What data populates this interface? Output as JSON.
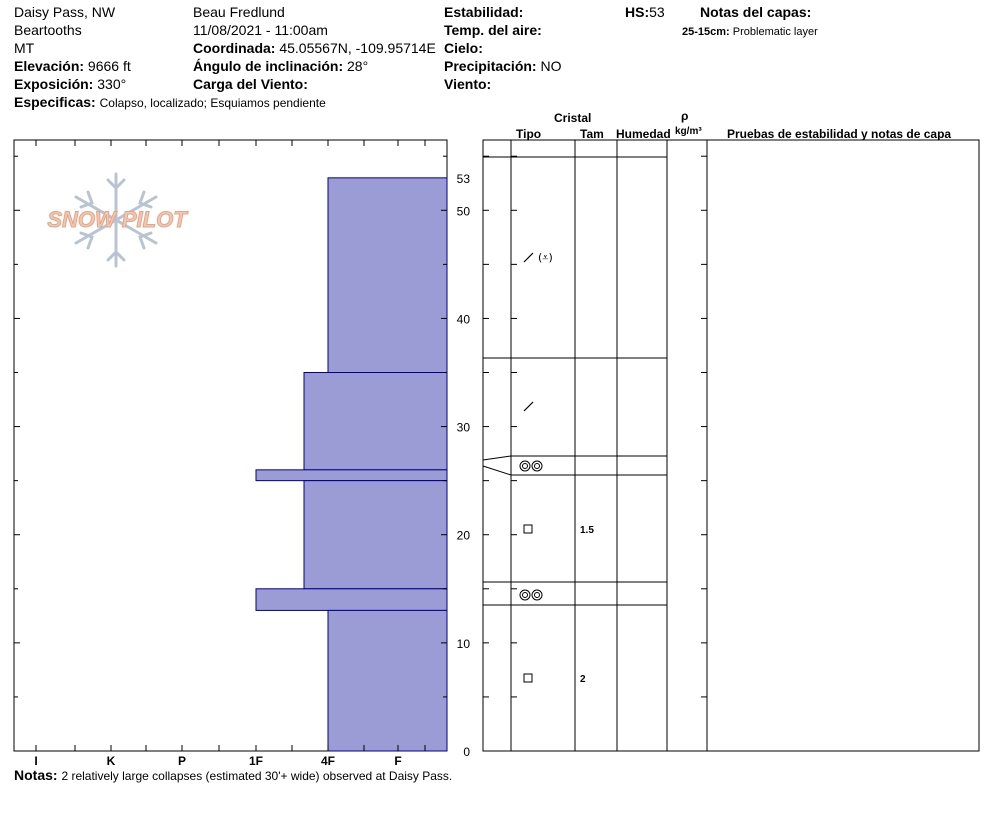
{
  "header": {
    "location": "Daisy Pass, NW",
    "range": "Beartooths",
    "state": "MT",
    "elevation_label": "Elevación:",
    "elevation_value": "9666 ft",
    "aspect_label": "Exposición:",
    "aspect_value": "330°",
    "specifics_label": "Especificas:",
    "specifics_value": "Colapso, localizado; Esquiamos pendiente",
    "observer": "Beau  Fredlund",
    "datetime": "11/08/2021 - 11:00am",
    "coord_label": "Coordinada:",
    "coord_value": "45.05567N, -109.95714E",
    "slope_label": "Ángulo de inclinación:",
    "slope_value": "28°",
    "wind_load_label": "Carga del Viento:",
    "stability_label": "Estabilidad:",
    "air_temp_label": "Temp. del aire:",
    "sky_label": "Cielo:",
    "precip_label": "Precipitación:",
    "precip_value": "NO",
    "wind_label": "Viento:",
    "hs_label": "HS:",
    "hs_value": "53",
    "layer_notes_label": "Notas del capas:",
    "layer_note_range": "25-15cm:",
    "layer_note_text": "Problematic layer"
  },
  "logo_text": "SNOW PILOT",
  "columns": {
    "crystal": "Cristal",
    "type": "Tipo",
    "size": "Tam",
    "moisture": "Humedad",
    "rho": "ρ",
    "density_unit": "kg/m³",
    "tests": "Pruebas de estabilidad y notas de capa"
  },
  "notes_label": "Notas:",
  "notes_value": "2 relatively large collapses (estimated 30'+ wide) observed at Daisy Pass.",
  "chart_data": {
    "type": "bar",
    "orientation": "horizontal",
    "yrange": [
      0,
      53
    ],
    "y_ticks": [
      0,
      10,
      20,
      30,
      40,
      50
    ],
    "top_label": "53",
    "hardness_scale": [
      "I",
      "K",
      "P",
      "1F",
      "4F",
      "F"
    ],
    "layers": [
      {
        "bottom": 35,
        "top": 53,
        "hardness": "4F",
        "grain": "decomposing-and-surface-hoar",
        "size": ""
      },
      {
        "bottom": 26,
        "top": 35,
        "hardness": "4F+",
        "grain": "decomposing",
        "size": ""
      },
      {
        "bottom": 25,
        "top": 26,
        "hardness": "1F",
        "grain": "melt-forms",
        "size": ""
      },
      {
        "bottom": 15,
        "top": 25,
        "hardness": "4F+",
        "grain": "faceted",
        "size": "1.5"
      },
      {
        "bottom": 13,
        "top": 15,
        "hardness": "1F",
        "grain": "melt-forms",
        "size": ""
      },
      {
        "bottom": 0,
        "top": 13,
        "hardness": "4F",
        "grain": "faceted",
        "size": "2"
      }
    ],
    "colors": {
      "bar_fill": "#9b9bd6",
      "bar_stroke": "#00008b"
    }
  }
}
